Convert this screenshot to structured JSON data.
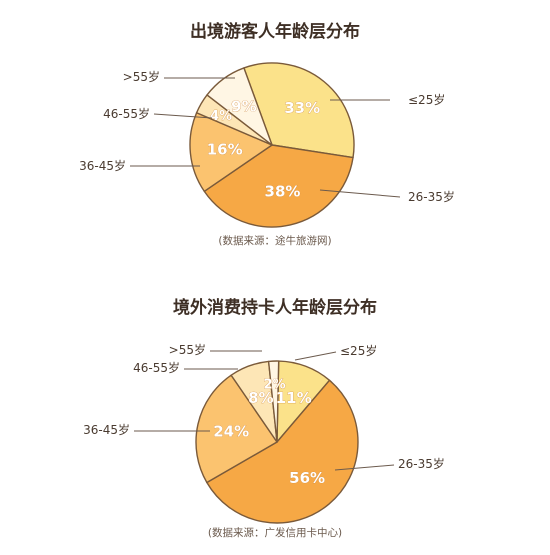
{
  "chart_data": [
    {
      "type": "pie",
      "title": "出境游客人年龄层分布",
      "source": "(数据来源：途牛旅游网)",
      "slices": [
        {
          "label": "≤25岁",
          "value": 33,
          "text": "33%",
          "color": "#fbe28a"
        },
        {
          "label": "26-35岁",
          "value": 38,
          "text": "38%",
          "color": "#f6a845"
        },
        {
          "label": "36-45岁",
          "value": 16,
          "text": "16%",
          "color": "#fbc36f"
        },
        {
          "label": "46-55岁",
          "value": 4,
          "text": "4%",
          "color": "#fde6b6"
        },
        {
          "label": ">55岁",
          "value": 9,
          "text": "9%",
          "color": "#fff6e4"
        }
      ]
    },
    {
      "type": "pie",
      "title": "境外消费持卡人年龄层分布",
      "source": "(数据来源：广发信用卡中心)",
      "slices": [
        {
          "label": "≤25岁",
          "value": 11,
          "text": "11%",
          "color": "#fbe28a"
        },
        {
          "label": "26-35岁",
          "value": 56,
          "text": "56%",
          "color": "#f6a845"
        },
        {
          "label": "36-45岁",
          "value": 24,
          "text": "24%",
          "color": "#fbc36f"
        },
        {
          "label": "46-55岁",
          "value": 8,
          "text": "8%",
          "color": "#fde6b6"
        },
        {
          "label": ">55岁",
          "value": 2,
          "text": "2%",
          "color": "#fff6e4"
        }
      ]
    }
  ]
}
